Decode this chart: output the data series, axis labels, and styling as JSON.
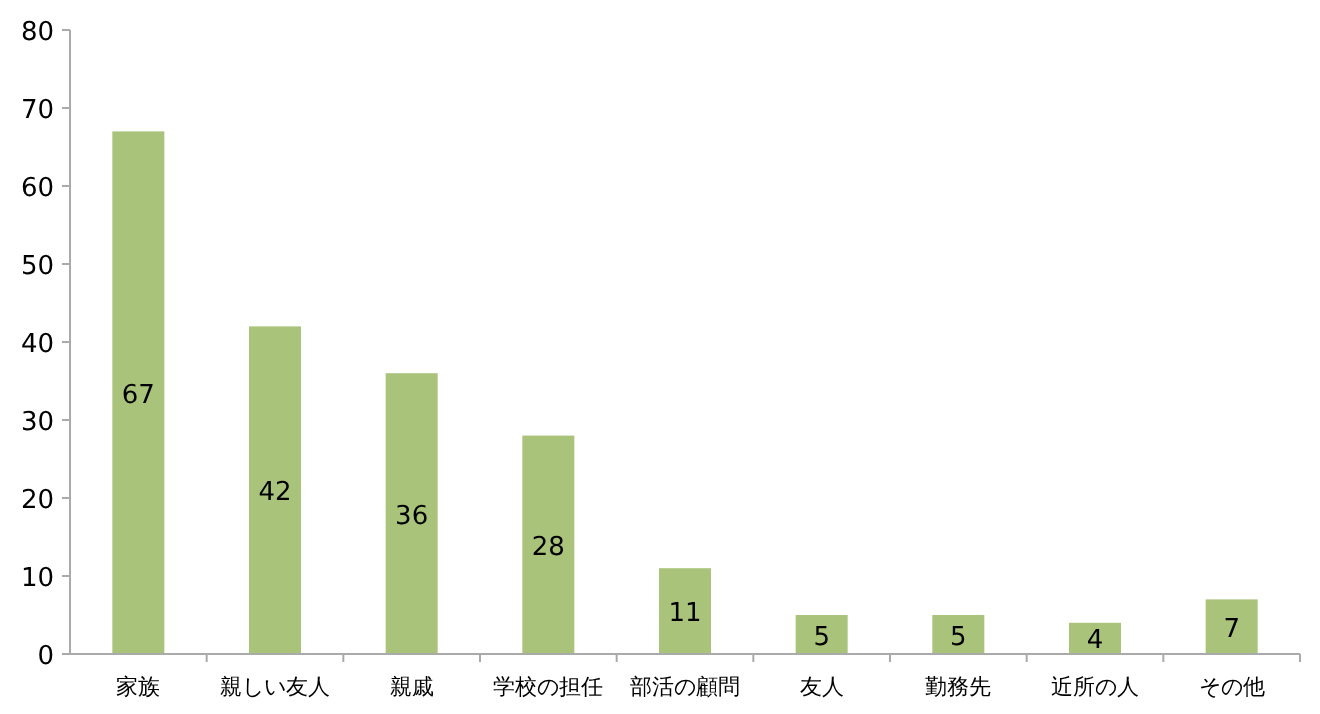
{
  "chart_data": {
    "type": "bar",
    "categories": [
      "家族",
      "親しい友人",
      "親戚",
      "学校の担任",
      "部活の顧問",
      "友人",
      "勤務先",
      "近所の人",
      "その他"
    ],
    "values": [
      67,
      42,
      36,
      28,
      11,
      5,
      5,
      4,
      7
    ],
    "color": "#a9c47a",
    "data_labels": true,
    "ylim": [
      0,
      80
    ],
    "yticks": [
      0,
      10,
      20,
      30,
      40,
      50,
      60,
      70,
      80
    ],
    "grid": false
  }
}
